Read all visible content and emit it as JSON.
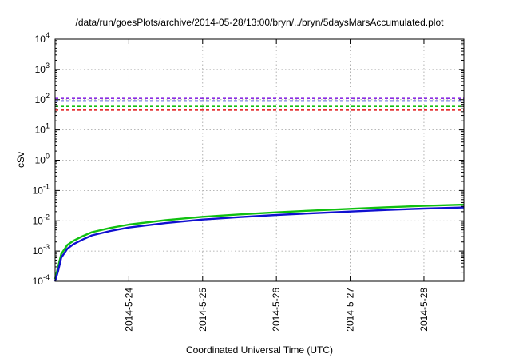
{
  "chart_data": {
    "type": "line",
    "title": "/data/run/goesPlots/archive/2014-05-28/13:00/bryn/../bryn/5daysMarsAccumulated.plot",
    "xlabel": "Coordinated Universal Time (UTC)",
    "ylabel": "cSv",
    "yscale": "log",
    "ylim": [
      0.0001,
      10000
    ],
    "xlim": [
      "2014-05-23 00:00",
      "2014-05-28 13:00"
    ],
    "y_ticks": [
      {
        "mant": "10",
        "exp": "-4",
        "value": 0.0001
      },
      {
        "mant": "10",
        "exp": "-3",
        "value": 0.001
      },
      {
        "mant": "10",
        "exp": "-2",
        "value": 0.01
      },
      {
        "mant": "10",
        "exp": "-1",
        "value": 0.1
      },
      {
        "mant": "10",
        "exp": "0",
        "value": 1
      },
      {
        "mant": "10",
        "exp": "1",
        "value": 10
      },
      {
        "mant": "10",
        "exp": "2",
        "value": 100
      },
      {
        "mant": "10",
        "exp": "3",
        "value": 1000
      },
      {
        "mant": "10",
        "exp": "4",
        "value": 10000
      }
    ],
    "x_ticks": [
      "2014-5-24",
      "2014-5-25",
      "2014-5-26",
      "2014-5-27",
      "2014-5-28"
    ],
    "grid": true,
    "reference_lines": [
      {
        "value": 110,
        "color": "#8a2be2"
      },
      {
        "value": 90,
        "color": "#1010d0"
      },
      {
        "value": 60,
        "color": "#10c010"
      },
      {
        "value": 45,
        "color": "#e01010"
      }
    ],
    "series": [
      {
        "color": "#10c010",
        "x": [
          "2014-05-23 00:00",
          "2014-05-23 01:00",
          "2014-05-23 02:00",
          "2014-05-23 04:00",
          "2014-05-23 06:00",
          "2014-05-23 09:00",
          "2014-05-23 12:00",
          "2014-05-23 18:00",
          "2014-05-24 00:00",
          "2014-05-24 12:00",
          "2014-05-25 00:00",
          "2014-05-25 12:00",
          "2014-05-26 00:00",
          "2014-05-26 12:00",
          "2014-05-27 00:00",
          "2014-05-27 12:00",
          "2014-05-28 00:00",
          "2014-05-28 13:00"
        ],
        "y": [
          0.00012,
          0.0003,
          0.0008,
          0.0016,
          0.0022,
          0.0031,
          0.0042,
          0.0058,
          0.0075,
          0.0105,
          0.0135,
          0.0162,
          0.019,
          0.0218,
          0.0248,
          0.028,
          0.031,
          0.034
        ]
      },
      {
        "color": "#1010d0",
        "x": [
          "2014-05-23 00:00",
          "2014-05-23 01:00",
          "2014-05-23 02:00",
          "2014-05-23 04:00",
          "2014-05-23 06:00",
          "2014-05-23 09:00",
          "2014-05-23 12:00",
          "2014-05-23 18:00",
          "2014-05-24 00:00",
          "2014-05-24 12:00",
          "2014-05-25 00:00",
          "2014-05-25 12:00",
          "2014-05-26 00:00",
          "2014-05-26 12:00",
          "2014-05-27 00:00",
          "2014-05-27 12:00",
          "2014-05-28 00:00",
          "2014-05-28 13:00"
        ],
        "y": [
          0.0001,
          0.00022,
          0.0006,
          0.0012,
          0.0017,
          0.0024,
          0.0033,
          0.0046,
          0.006,
          0.0084,
          0.011,
          0.0132,
          0.0155,
          0.0178,
          0.0202,
          0.0228,
          0.0252,
          0.0275
        ]
      }
    ]
  }
}
